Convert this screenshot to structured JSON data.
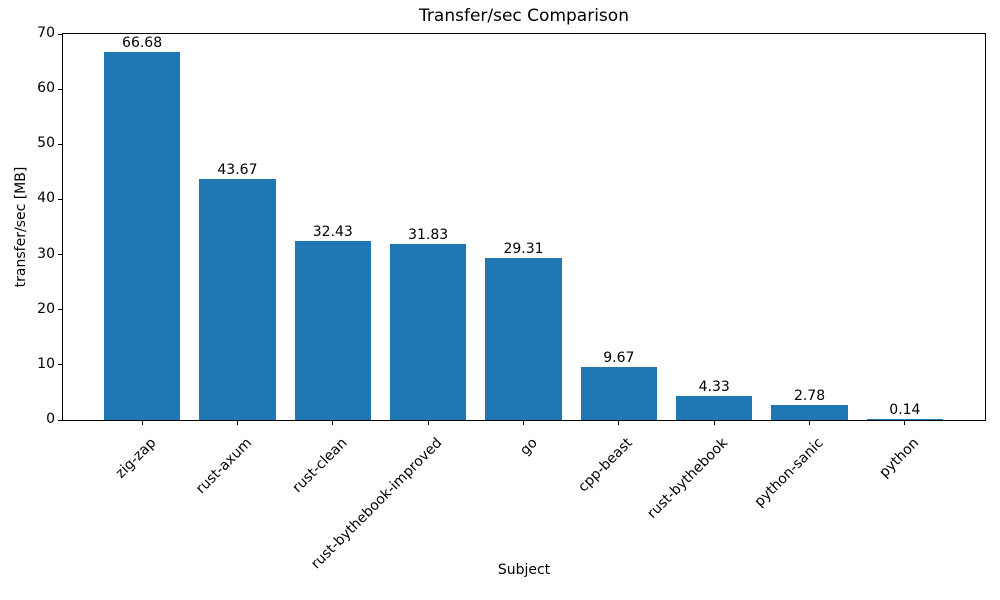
{
  "chart_data": {
    "type": "bar",
    "title": "Transfer/sec Comparison",
    "xlabel": "Subject",
    "ylabel": "transfer/sec [MB]",
    "categories": [
      "zig-zap",
      "rust-axum",
      "rust-clean",
      "rust-bythebook-improved",
      "go",
      "cpp-beast",
      "rust-bythebook",
      "python-sanic",
      "python"
    ],
    "values": [
      66.68,
      43.67,
      32.43,
      31.83,
      29.31,
      9.67,
      4.33,
      2.78,
      0.14
    ],
    "bar_value_labels": [
      "66.68",
      "43.67",
      "32.43",
      "31.83",
      "29.31",
      "9.67",
      "4.33",
      "2.78",
      "0.14"
    ],
    "ylim": [
      0,
      70
    ],
    "yticks": [
      0,
      10,
      20,
      30,
      40,
      50,
      60,
      70
    ],
    "x_tick_rotation_deg": 45,
    "grid": false,
    "legend_position": "none",
    "bar_color": "#1f77b4",
    "axis_color": "#000000",
    "text_color": "#000000",
    "background_color": "#ffffff"
  }
}
